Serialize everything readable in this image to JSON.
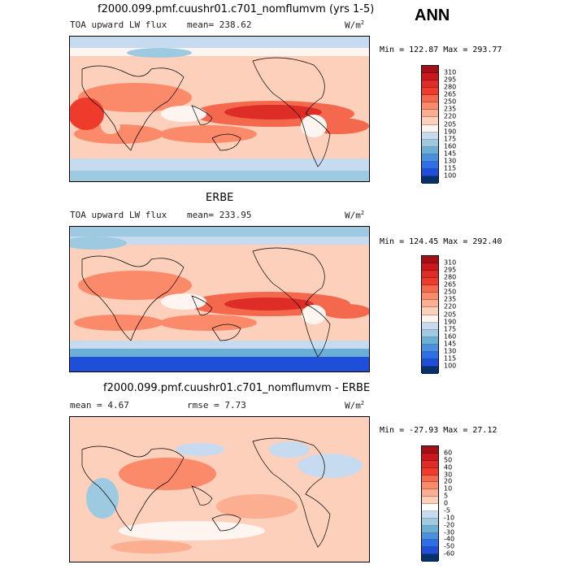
{
  "season": "ANN",
  "panels": [
    {
      "title": "f2000.099.pmf.cuushr01.c701_nomflumvm (yrs 1-5)",
      "left_label": "TOA upward LW flux",
      "mean_label": "mean= 238.62",
      "units": "W/m",
      "units_sup": "2",
      "stats": "Min = 122.87 Max = 293.77",
      "colorbar_levels": [
        "310",
        "295",
        "280",
        "265",
        "250",
        "235",
        "220",
        "205",
        "190",
        "175",
        "160",
        "145",
        "130",
        "115",
        "100"
      ],
      "colorbar_colors": [
        "#a50f15",
        "#cb181d",
        "#de2d26",
        "#ef3b2c",
        "#f4694e",
        "#fb8a6a",
        "#fcae91",
        "#fdd0bc",
        "#fff5f0",
        "#c6dbef",
        "#9ecae1",
        "#6baed6",
        "#4a8fe0",
        "#2c6fe8",
        "#1f4fd8",
        "#08306b"
      ]
    },
    {
      "title": "ERBE",
      "left_label": "TOA upward LW flux",
      "mean_label": "mean= 233.95",
      "units": "W/m",
      "units_sup": "2",
      "stats": "Min = 124.45 Max = 292.40",
      "colorbar_levels": [
        "310",
        "295",
        "280",
        "265",
        "250",
        "235",
        "220",
        "205",
        "190",
        "175",
        "160",
        "145",
        "130",
        "115",
        "100"
      ],
      "colorbar_colors": [
        "#a50f15",
        "#cb181d",
        "#de2d26",
        "#ef3b2c",
        "#f4694e",
        "#fb8a6a",
        "#fcae91",
        "#fdd0bc",
        "#fff5f0",
        "#c6dbef",
        "#9ecae1",
        "#6baed6",
        "#4a8fe0",
        "#2c6fe8",
        "#1f4fd8",
        "#08306b"
      ]
    },
    {
      "title": "f2000.099.pmf.cuushr01.c701_nomflumvm - ERBE",
      "left_label": "mean =    4.67",
      "mean_label": "rmse =    7.73",
      "units": "W/m",
      "units_sup": "2",
      "stats": "Min = -27.93 Max =  27.12",
      "colorbar_levels": [
        "60",
        "50",
        "40",
        "30",
        "20",
        "10",
        "5",
        "0",
        "-5",
        "-10",
        "-20",
        "-30",
        "-40",
        "-50",
        "-60"
      ],
      "colorbar_colors": [
        "#a50f15",
        "#cb181d",
        "#de2d26",
        "#ef3b2c",
        "#f4694e",
        "#fb8a6a",
        "#fcae91",
        "#fdd0bc",
        "#ffffff",
        "#c6dbef",
        "#9ecae1",
        "#6baed6",
        "#4a8fe0",
        "#2c6fe8",
        "#1f4fd8",
        "#08306b"
      ]
    }
  ],
  "chart_data": [
    {
      "type": "heatmap",
      "title": "f2000.099.pmf.cuushr01.c701_nomflumvm (yrs 1-5)",
      "variable": "TOA upward LW flux",
      "units": "W/m2",
      "mean": 238.62,
      "min": 122.87,
      "max": 293.77,
      "contour_levels": [
        100,
        115,
        130,
        145,
        160,
        175,
        190,
        205,
        220,
        235,
        250,
        265,
        280,
        295,
        310
      ]
    },
    {
      "type": "heatmap",
      "title": "ERBE",
      "variable": "TOA upward LW flux",
      "units": "W/m2",
      "mean": 233.95,
      "min": 124.45,
      "max": 292.4,
      "contour_levels": [
        100,
        115,
        130,
        145,
        160,
        175,
        190,
        205,
        220,
        235,
        250,
        265,
        280,
        295,
        310
      ]
    },
    {
      "type": "heatmap",
      "title": "f2000.099.pmf.cuushr01.c701_nomflumvm - ERBE",
      "units": "W/m2",
      "mean": 4.67,
      "rmse": 7.73,
      "min": -27.93,
      "max": 27.12,
      "contour_levels": [
        -60,
        -50,
        -40,
        -30,
        -20,
        -10,
        -5,
        0,
        5,
        10,
        20,
        30,
        40,
        50,
        60
      ]
    }
  ]
}
